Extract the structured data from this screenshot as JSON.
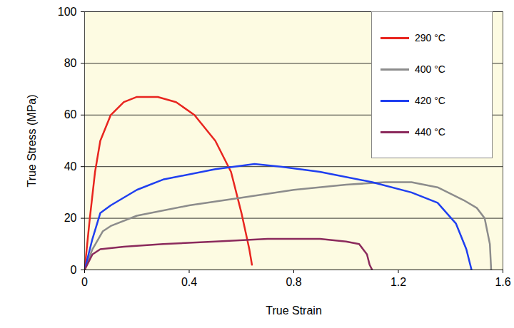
{
  "chart_data": {
    "type": "line",
    "xlabel": "True Strain",
    "ylabel": "True Stress (MPa)",
    "xlim": [
      0,
      1.6
    ],
    "xticks": [
      0,
      0.4,
      0.8,
      1.2,
      1.6
    ],
    "ylim": [
      0,
      100
    ],
    "yticks": [
      0,
      20,
      40,
      60,
      80,
      100
    ],
    "grid": true,
    "legend": "top-right",
    "series": [
      {
        "name": "290 °C",
        "color": "#e8251f",
        "x": [
          0,
          0.02,
          0.04,
          0.06,
          0.1,
          0.15,
          0.2,
          0.28,
          0.35,
          0.42,
          0.5,
          0.56,
          0.6,
          0.63,
          0.64
        ],
        "values": [
          0,
          20,
          38,
          50,
          60,
          65,
          67,
          67,
          65,
          60,
          50,
          38,
          22,
          8,
          2
        ]
      },
      {
        "name": "400 °C",
        "color": "#8c8c8c",
        "x": [
          0,
          0.03,
          0.07,
          0.1,
          0.2,
          0.4,
          0.6,
          0.8,
          1.0,
          1.15,
          1.25,
          1.35,
          1.45,
          1.5,
          1.53,
          1.55,
          1.555
        ],
        "values": [
          0,
          8,
          15,
          17,
          21,
          25,
          28,
          31,
          33,
          34,
          34,
          32,
          27,
          24,
          20,
          10,
          0
        ]
      },
      {
        "name": "420 °C",
        "color": "#1f3ff0",
        "x": [
          0,
          0.03,
          0.06,
          0.1,
          0.2,
          0.3,
          0.5,
          0.65,
          0.75,
          0.9,
          1.1,
          1.25,
          1.35,
          1.42,
          1.46,
          1.48
        ],
        "values": [
          0,
          12,
          22,
          25,
          31,
          35,
          39,
          41,
          40,
          38,
          34,
          30,
          26,
          18,
          8,
          0
        ]
      },
      {
        "name": "440 °C",
        "color": "#8b2a5c",
        "x": [
          0,
          0.03,
          0.06,
          0.15,
          0.3,
          0.5,
          0.7,
          0.9,
          1.0,
          1.05,
          1.08,
          1.09,
          1.1
        ],
        "values": [
          0,
          6,
          8,
          9,
          10,
          11,
          12,
          12,
          11,
          10,
          6,
          2,
          0
        ]
      }
    ]
  }
}
